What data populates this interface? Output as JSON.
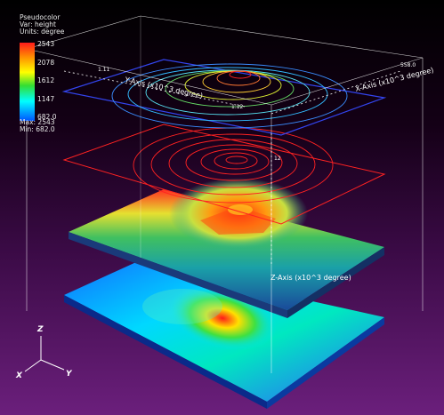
{
  "legend": {
    "plot_type": "Pseudocolor",
    "var_line": "Var: height",
    "units_line": "Units: degree",
    "ticks": [
      "2543",
      "2078",
      "1612",
      "1147",
      "682.0"
    ],
    "max_line": "Max: 2543",
    "min_line": "Min: 682.0",
    "colors": [
      "#ff1a1a",
      "#ff9900",
      "#ffff00",
      "#33dd33",
      "#00ffff",
      "#0055ff"
    ]
  },
  "axes": {
    "x_label": "X-Axis (x10^3 degree)",
    "y_label": "Y-Axis (x10^3 degree)",
    "z_label": "Z-Axis (x10^3 degree)",
    "tick_left": "1.11",
    "tick_right": "558.0",
    "tick_mid": "1.12",
    "tick_z": "12"
  },
  "triad": {
    "x": "X",
    "y": "Y",
    "z": "Z"
  },
  "colors": {
    "top_contours_outer": "#3399ff",
    "top_contours_inner": "#ffcc33",
    "mid_contours": "#ff2222",
    "frame": "#ffffff"
  }
}
